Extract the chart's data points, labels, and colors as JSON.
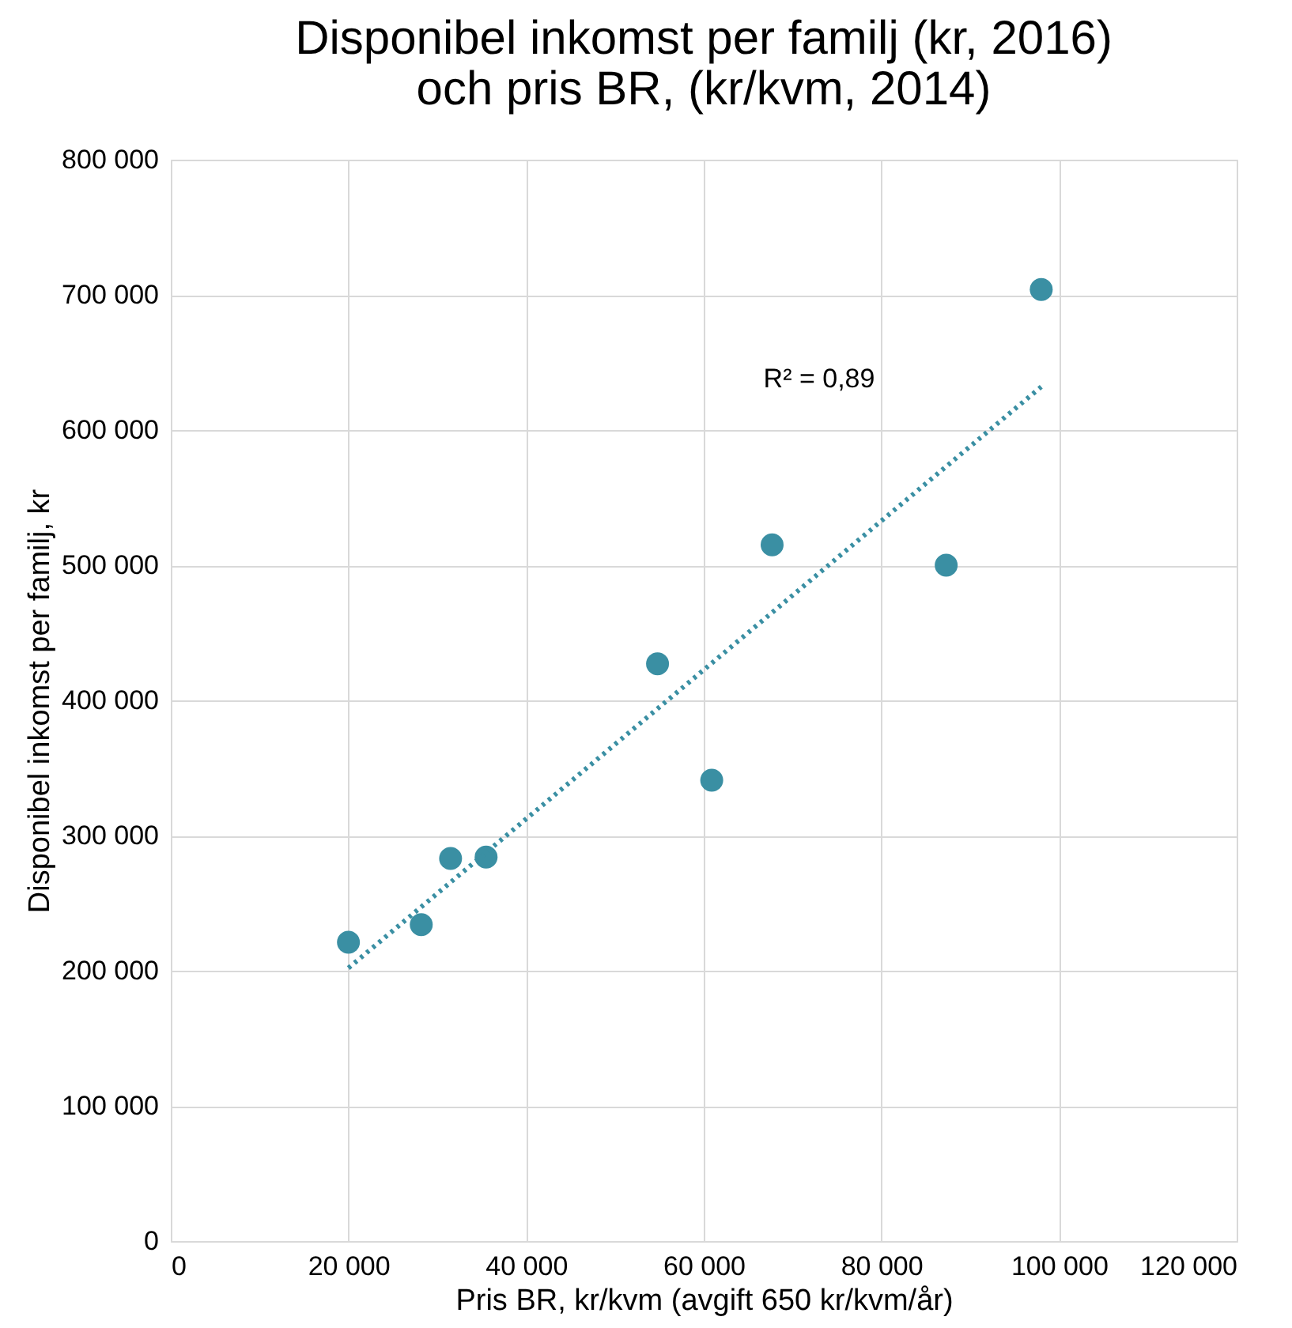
{
  "chart_data": {
    "type": "scatter",
    "title": [
      "Disponibel inkomst per familj (kr, 2016)",
      "och pris BR, (kr/kvm, 2014)"
    ],
    "xlabel": "Pris BR, kr/kvm (avgift 650 kr/kvm/år)",
    "ylabel": "Disponibel inkomst per familj, kr",
    "series": [
      {
        "color": "#3a8fa3",
        "marker": "circle",
        "x": [
          20000,
          28200,
          31500,
          35500,
          54800,
          60900,
          67700,
          87300,
          98000
        ],
        "values": [
          221000,
          234000,
          283000,
          284000,
          427000,
          341000,
          515000,
          500000,
          704000
        ]
      },
      {
        "type": "line",
        "color": "#3a8fa3",
        "line_style": "dotted",
        "x": [
          20000,
          98000
        ],
        "values": [
          202000,
          632000
        ]
      }
    ],
    "annotations": [
      "R² = 0,89"
    ],
    "xlim": [
      0,
      120000
    ],
    "ylim": [
      0,
      800000
    ],
    "xticks": [
      0,
      {
        "value": 20000,
        "label": "20 000"
      },
      {
        "value": 40000,
        "label": "40 000"
      },
      {
        "value": 60000,
        "label": "60 000"
      },
      {
        "value": 80000,
        "label": "80 000"
      },
      {
        "value": 100000,
        "label": "100 000"
      },
      {
        "value": 120000,
        "label": "120 000"
      }
    ],
    "yticks": [
      0,
      {
        "value": 100000,
        "label": "100 000"
      },
      {
        "value": 200000,
        "label": "200 000"
      },
      {
        "value": 300000,
        "label": "300 000"
      },
      {
        "value": 400000,
        "label": "400 000"
      },
      {
        "value": 500000,
        "label": "500 000"
      },
      {
        "value": 600000,
        "label": "600 000"
      },
      {
        "value": 700000,
        "label": "700 000"
      },
      {
        "value": 800000,
        "label": "800 000"
      }
    ],
    "grid": true
  }
}
